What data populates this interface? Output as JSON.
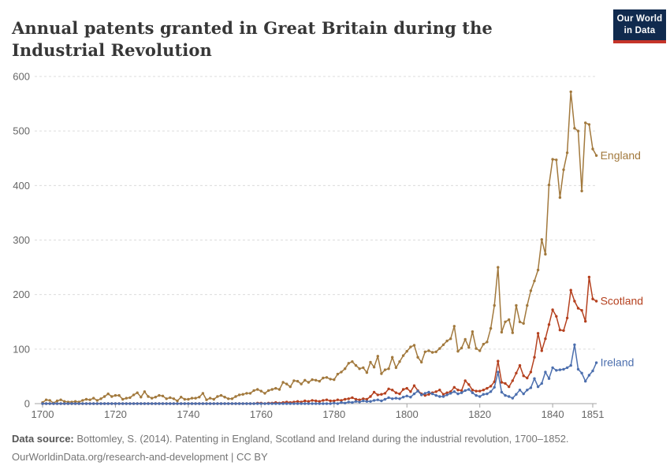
{
  "header": {
    "title": "Annual patents granted in Great Britain during the Industrial Revolution",
    "logo_line1": "Our World",
    "logo_line2": "in Data"
  },
  "footer": {
    "source_label": "Data source:",
    "source_text": " Bottomley, S. (2014). Patenting in England, Scotland and Ireland during the industrial revolution, 1700–1852.",
    "link": "OurWorldinData.org/research-and-development",
    "license": " | CC BY"
  },
  "colors": {
    "england": "#a2793d",
    "scotland": "#b5411f",
    "ireland": "#4c6fae",
    "gridline": "#dcdcdc",
    "axis_line": "#a5a5a5",
    "axis_text": "#666666",
    "logo_bg": "#102a4e",
    "logo_bar": "#c53429"
  },
  "chart_data": {
    "type": "line",
    "title": "Annual patents granted in Great Britain during the Industrial Revolution",
    "xlabel": "",
    "ylabel": "",
    "x_start": 1700,
    "x_end": 1852,
    "x_ticks": [
      1700,
      1720,
      1740,
      1760,
      1780,
      1800,
      1820,
      1840,
      1851
    ],
    "y_ticks": [
      0,
      100,
      200,
      300,
      400,
      500,
      600
    ],
    "ylim": [
      0,
      600
    ],
    "grid": "horizontal-dashed",
    "legend_position": "line-end-labels",
    "marker": "dot",
    "series": [
      {
        "name": "England",
        "color": "#a2793d",
        "values": [
          2,
          7,
          6,
          1,
          5,
          7,
          4,
          3,
          3,
          4,
          3,
          6,
          8,
          7,
          10,
          6,
          9,
          13,
          18,
          13,
          15,
          15,
          8,
          10,
          11,
          16,
          20,
          12,
          22,
          13,
          10,
          12,
          15,
          14,
          9,
          11,
          9,
          5,
          12,
          8,
          8,
          10,
          10,
          12,
          19,
          7,
          10,
          8,
          13,
          15,
          12,
          9,
          9,
          13,
          16,
          17,
          19,
          19,
          24,
          26,
          23,
          19,
          24,
          26,
          28,
          26,
          39,
          36,
          31,
          42,
          41,
          36,
          43,
          39,
          44,
          43,
          41,
          47,
          48,
          45,
          44,
          54,
          58,
          64,
          74,
          77,
          70,
          64,
          66,
          57,
          76,
          67,
          87,
          55,
          62,
          64,
          85,
          66,
          77,
          88,
          96,
          104,
          107,
          85,
          76,
          95,
          97,
          94,
          95,
          101,
          108,
          115,
          119,
          142,
          96,
          102,
          118,
          103,
          132,
          101,
          97,
          109,
          113,
          138,
          180,
          250,
          131,
          150,
          154,
          130,
          180,
          150,
          147,
          180,
          207,
          225,
          245,
          301,
          274,
          401,
          448,
          447,
          378,
          429,
          460,
          572,
          505,
          500,
          390,
          515,
          512,
          467,
          455
        ]
      },
      {
        "name": "Scotland",
        "color": "#b5411f",
        "values": [
          0,
          0,
          0,
          0,
          0,
          0,
          0,
          0,
          0,
          0,
          0,
          0,
          0,
          0,
          0,
          0,
          0,
          0,
          0,
          0,
          0,
          0,
          0,
          0,
          0,
          0,
          0,
          0,
          0,
          0,
          0,
          0,
          0,
          0,
          0,
          0,
          0,
          0,
          0,
          0,
          0,
          0,
          0,
          0,
          0,
          0,
          0,
          0,
          0,
          0,
          0,
          0,
          0,
          0,
          0,
          0,
          0,
          0,
          0,
          1,
          1,
          0,
          1,
          1,
          2,
          1,
          2,
          3,
          2,
          3,
          4,
          3,
          5,
          4,
          6,
          5,
          4,
          6,
          7,
          5,
          5,
          7,
          6,
          8,
          9,
          11,
          8,
          7,
          9,
          8,
          13,
          21,
          16,
          17,
          19,
          27,
          25,
          20,
          18,
          26,
          28,
          22,
          33,
          24,
          18,
          15,
          17,
          20,
          22,
          25,
          17,
          20,
          22,
          30,
          25,
          24,
          42,
          35,
          25,
          23,
          23,
          25,
          28,
          32,
          40,
          78,
          39,
          37,
          31,
          42,
          56,
          70,
          51,
          47,
          58,
          85,
          129,
          97,
          119,
          145,
          172,
          160,
          135,
          134,
          157,
          208,
          188,
          175,
          171,
          151,
          232,
          192,
          188
        ]
      },
      {
        "name": "Ireland",
        "color": "#4c6fae",
        "values": [
          0,
          0,
          0,
          0,
          0,
          0,
          0,
          0,
          0,
          0,
          0,
          0,
          0,
          0,
          0,
          0,
          0,
          0,
          0,
          0,
          0,
          0,
          0,
          0,
          0,
          0,
          0,
          0,
          0,
          0,
          0,
          0,
          0,
          0,
          0,
          0,
          0,
          0,
          0,
          0,
          0,
          0,
          0,
          0,
          0,
          0,
          0,
          0,
          0,
          0,
          0,
          0,
          0,
          0,
          0,
          0,
          0,
          0,
          0,
          0,
          0,
          0,
          0,
          0,
          0,
          0,
          0,
          0,
          0,
          0,
          0,
          0,
          0,
          0,
          0,
          0,
          0,
          0,
          0,
          0,
          1,
          0,
          2,
          1,
          3,
          2,
          4,
          3,
          5,
          4,
          4,
          6,
          7,
          5,
          8,
          11,
          9,
          10,
          9,
          12,
          14,
          12,
          18,
          23,
          16,
          19,
          21,
          18,
          15,
          13,
          13,
          16,
          19,
          22,
          18,
          20,
          24,
          26,
          20,
          15,
          13,
          17,
          18,
          22,
          30,
          58,
          21,
          15,
          13,
          10,
          17,
          25,
          18,
          25,
          29,
          46,
          31,
          37,
          58,
          46,
          66,
          61,
          62,
          63,
          66,
          70,
          108,
          63,
          56,
          41,
          52,
          60,
          75
        ]
      }
    ]
  }
}
